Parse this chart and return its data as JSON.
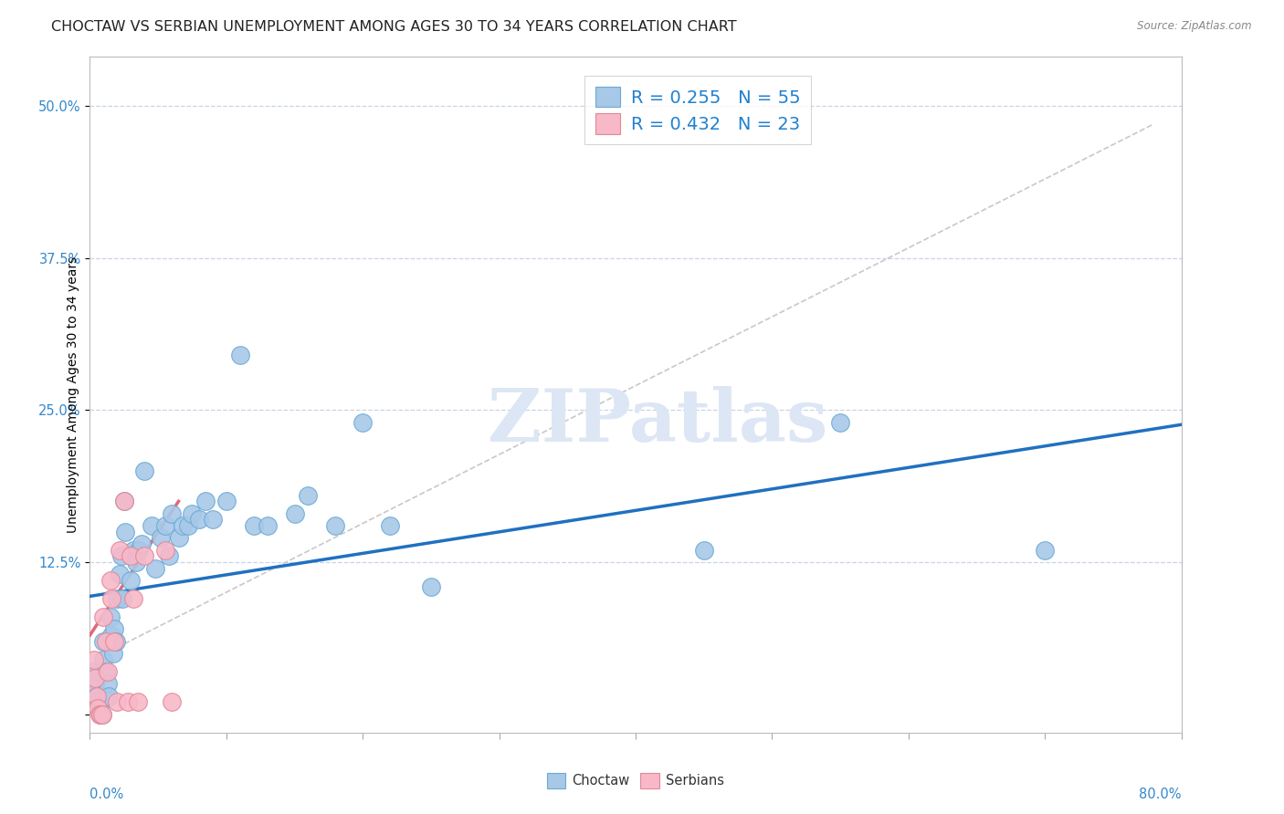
{
  "title": "CHOCTAW VS SERBIAN UNEMPLOYMENT AMONG AGES 30 TO 34 YEARS CORRELATION CHART",
  "source": "Source: ZipAtlas.com",
  "ylabel": "Unemployment Among Ages 30 to 34 years",
  "xmin": 0.0,
  "xmax": 0.8,
  "ymin": -0.015,
  "ymax": 0.54,
  "choctaw_color": "#a8c8e8",
  "choctaw_edge_color": "#6aaad4",
  "choctaw_line_color": "#2070c0",
  "serbian_color": "#f8b8c8",
  "serbian_edge_color": "#e08898",
  "serbian_line_color": "#e06878",
  "ref_line_color": "#c8c8c8",
  "background_color": "#ffffff",
  "grid_color": "#c8d4e8",
  "legend_R_color": "#2080d0",
  "choctaw_x": [
    0.003,
    0.004,
    0.005,
    0.006,
    0.007,
    0.008,
    0.009,
    0.01,
    0.01,
    0.012,
    0.013,
    0.014,
    0.015,
    0.016,
    0.017,
    0.018,
    0.019,
    0.02,
    0.022,
    0.023,
    0.024,
    0.025,
    0.026,
    0.03,
    0.032,
    0.034,
    0.036,
    0.038,
    0.04,
    0.045,
    0.048,
    0.052,
    0.055,
    0.058,
    0.06,
    0.065,
    0.068,
    0.072,
    0.075,
    0.08,
    0.085,
    0.09,
    0.1,
    0.11,
    0.12,
    0.13,
    0.15,
    0.16,
    0.18,
    0.2,
    0.22,
    0.25,
    0.45,
    0.55,
    0.7
  ],
  "choctaw_y": [
    0.035,
    0.025,
    0.015,
    0.01,
    0.005,
    0.0,
    0.0,
    0.06,
    0.045,
    0.035,
    0.025,
    0.015,
    0.08,
    0.065,
    0.05,
    0.07,
    0.06,
    0.095,
    0.115,
    0.13,
    0.095,
    0.175,
    0.15,
    0.11,
    0.135,
    0.125,
    0.135,
    0.14,
    0.2,
    0.155,
    0.12,
    0.145,
    0.155,
    0.13,
    0.165,
    0.145,
    0.155,
    0.155,
    0.165,
    0.16,
    0.175,
    0.16,
    0.175,
    0.295,
    0.155,
    0.155,
    0.165,
    0.18,
    0.155,
    0.24,
    0.155,
    0.105,
    0.135,
    0.24,
    0.135
  ],
  "serbian_x": [
    0.003,
    0.004,
    0.005,
    0.006,
    0.007,
    0.008,
    0.009,
    0.01,
    0.012,
    0.013,
    0.015,
    0.016,
    0.018,
    0.02,
    0.022,
    0.025,
    0.028,
    0.03,
    0.032,
    0.035,
    0.04,
    0.055,
    0.06
  ],
  "serbian_y": [
    0.045,
    0.03,
    0.015,
    0.005,
    0.0,
    0.0,
    0.0,
    0.08,
    0.06,
    0.035,
    0.11,
    0.095,
    0.06,
    0.01,
    0.135,
    0.175,
    0.01,
    0.13,
    0.095,
    0.01,
    0.13,
    0.135,
    0.01
  ],
  "choctaw_trend_x": [
    0.0,
    0.8
  ],
  "choctaw_trend_y": [
    0.097,
    0.238
  ],
  "serbian_trend_x": [
    0.0,
    0.065
  ],
  "serbian_trend_y": [
    0.065,
    0.175
  ],
  "ref_line_x": [
    0.02,
    0.78
  ],
  "ref_line_y": [
    0.055,
    0.485
  ],
  "title_fontsize": 11.5,
  "axis_label_fontsize": 10,
  "tick_fontsize": 10.5,
  "legend_fontsize": 14,
  "watermark_text": "ZIPatlas",
  "watermark_color": "#dde6f4",
  "watermark_fontsize": 58
}
